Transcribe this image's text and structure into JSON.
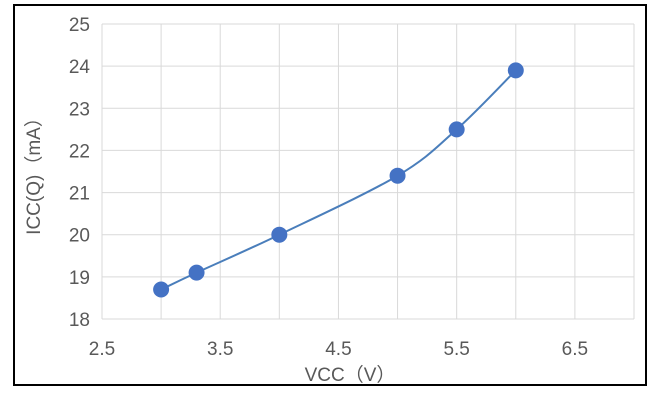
{
  "chart_data": {
    "type": "scatter",
    "title": "",
    "xlabel": "VCC（V）",
    "ylabel": "ICC(Q)（mA）",
    "xlim": [
      2.5,
      7.0
    ],
    "ylim": [
      18,
      25
    ],
    "x_ticks": [
      "2.5",
      "3.5",
      "4.5",
      "5.5",
      "6.5"
    ],
    "y_ticks": [
      "18",
      "19",
      "20",
      "21",
      "22",
      "23",
      "24",
      "25"
    ],
    "grid": true,
    "smooth_line": true,
    "series": [
      {
        "color": "#4472c4",
        "x": [
          3.0,
          3.3,
          4.0,
          5.0,
          5.5,
          6.0
        ],
        "y": [
          18.7,
          19.1,
          20.0,
          21.4,
          22.5,
          23.9
        ]
      }
    ]
  }
}
